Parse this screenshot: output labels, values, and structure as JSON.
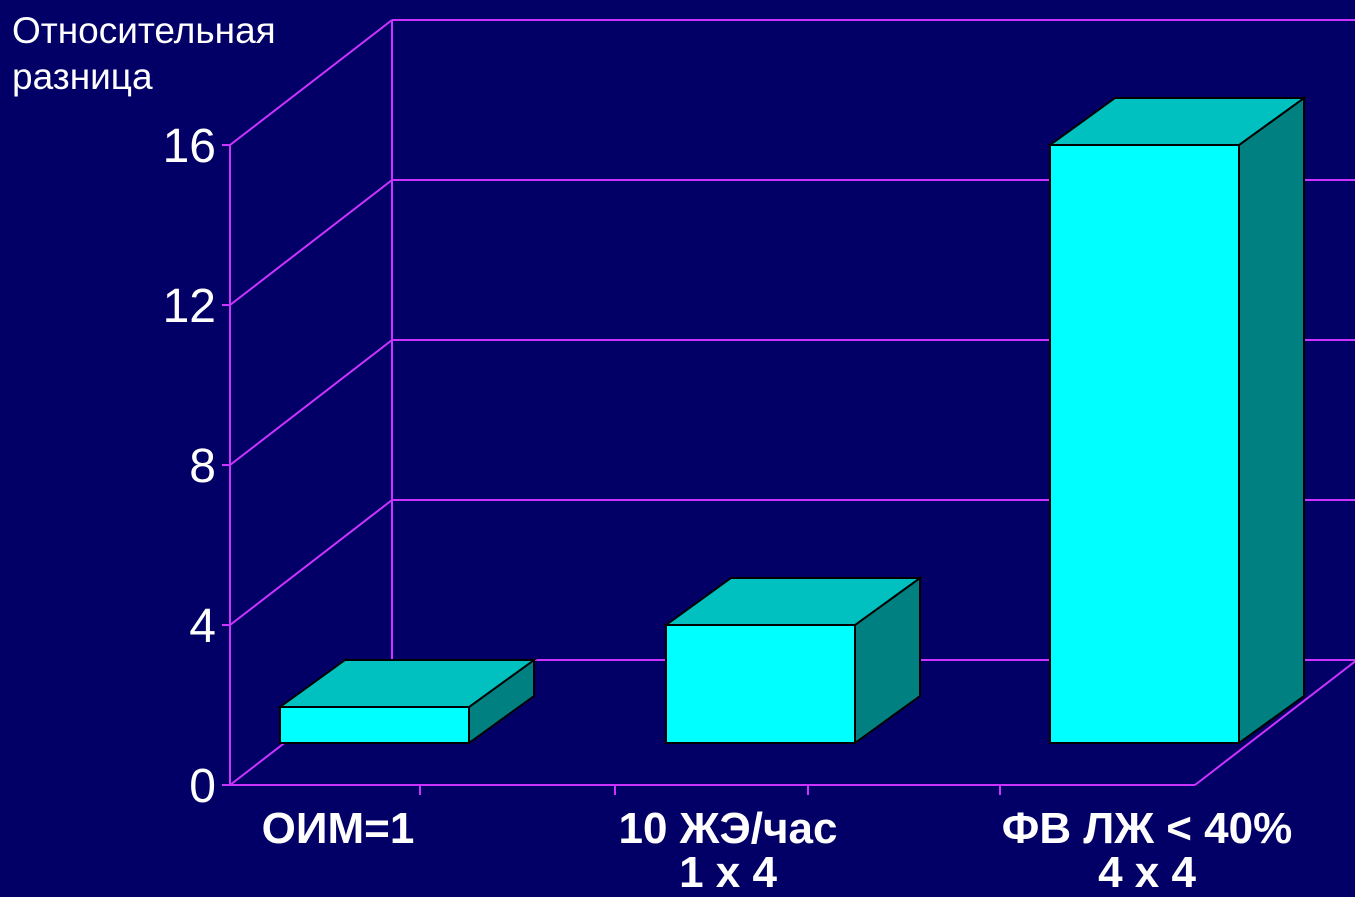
{
  "chart_data": {
    "type": "bar",
    "ylabel_lines": [
      "Относительная",
      "разница"
    ],
    "categories": [
      {
        "lines": [
          "ОИМ=1"
        ]
      },
      {
        "lines": [
          "10 ЖЭ/час",
          "1 х 4"
        ]
      },
      {
        "lines": [
          "ФВ ЛЖ < 40%",
          "4 х 4"
        ]
      }
    ],
    "values": [
      1,
      4,
      16
    ],
    "ylim": [
      0,
      16
    ],
    "yticks": [
      "0",
      "4",
      "8",
      "12",
      "16"
    ],
    "grid": true,
    "bar_colors": {
      "front": "#00ffff",
      "top": "#00c0c0",
      "side": "#008080"
    },
    "axis_color": "#cc33ff",
    "background": "#020066"
  }
}
